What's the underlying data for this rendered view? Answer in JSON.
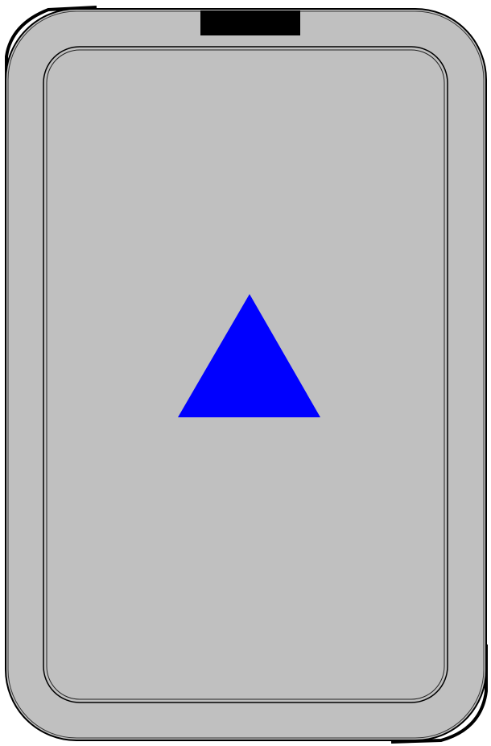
{
  "device": {
    "body_color": "#c0c0c0",
    "outline_color": "#000000",
    "top_notch_color": "#000000"
  },
  "screen": {
    "fill_color": "#c0c0c0"
  },
  "shape": {
    "type": "triangle",
    "orientation": "up",
    "color": "#0000ff",
    "icon": "triangle-icon"
  }
}
